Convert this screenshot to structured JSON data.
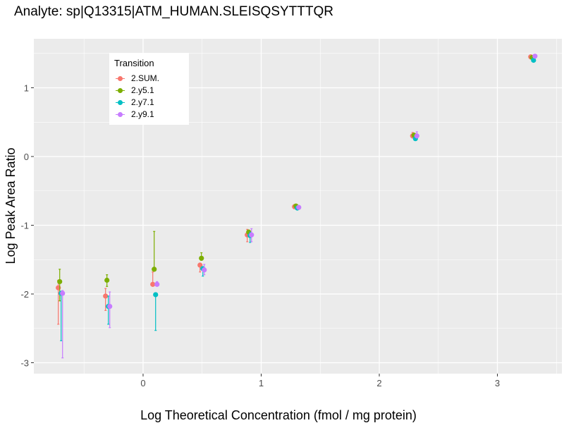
{
  "chart_data": {
    "type": "scatter",
    "title": "Analyte: sp|Q13315|ATM_HUMAN.SLEISQSYTTTQR",
    "xlabel": "Log Theoretical Concentration (fmol / mg protein)",
    "ylabel": "Log Peak Area Ratio",
    "xlim": [
      -0.925,
      3.546
    ],
    "ylim": [
      -3.159,
      1.713
    ],
    "x_ticks": [
      0,
      1,
      2,
      3
    ],
    "x_tick_labels": [
      "0",
      "1",
      "2",
      "3"
    ],
    "y_ticks": [
      -3,
      -2,
      -1,
      0,
      1
    ],
    "y_tick_labels": [
      "-3",
      "-2",
      "-1",
      "0",
      "1"
    ],
    "grid": true,
    "legend": {
      "title": "Transition",
      "placement": "top-left"
    },
    "x": [
      -0.7,
      -0.3,
      0.1,
      0.5,
      0.9,
      1.3,
      2.3,
      3.3
    ],
    "series": [
      {
        "name": "2.SUM.",
        "color": "#F8766D",
        "values": [
          -1.91,
          -2.03,
          -1.86,
          -1.58,
          -1.14,
          -0.73,
          0.3,
          1.45
        ],
        "err_low": [
          -2.44,
          -2.24,
          -1.86,
          -1.68,
          -1.24,
          -0.76,
          0.27,
          1.42
        ],
        "err_high": [
          -1.8,
          -1.92,
          -1.68,
          -1.55,
          -1.06,
          -0.7,
          0.35,
          1.47
        ]
      },
      {
        "name": "2.y5.1",
        "color": "#7CAE00",
        "values": [
          -1.82,
          -1.8,
          -1.64,
          -1.48,
          -1.1,
          -0.72,
          0.31,
          1.44
        ],
        "err_low": [
          -2.1,
          -1.89,
          -1.64,
          -1.51,
          -1.14,
          -0.74,
          0.29,
          1.42
        ],
        "err_high": [
          -1.64,
          -1.72,
          -1.09,
          -1.4,
          -1.07,
          -0.7,
          0.33,
          1.46
        ]
      },
      {
        "name": "2.y7.1",
        "color": "#00BFC4",
        "values": [
          -1.99,
          -2.18,
          -2.01,
          -1.63,
          -1.15,
          -0.75,
          0.26,
          1.4
        ],
        "err_low": [
          -2.68,
          -2.44,
          -2.53,
          -1.74,
          -1.25,
          -0.77,
          0.24,
          1.38
        ],
        "err_high": [
          -1.96,
          -2.03,
          -2.01,
          -1.63,
          -1.1,
          -0.73,
          0.29,
          1.42
        ]
      },
      {
        "name": "2.y9.1",
        "color": "#C77CFF",
        "values": [
          -1.99,
          -2.18,
          -1.86,
          -1.65,
          -1.14,
          -0.74,
          0.3,
          1.46
        ],
        "err_low": [
          -2.93,
          -2.49,
          -1.86,
          -1.72,
          -1.24,
          -0.76,
          0.27,
          1.44
        ],
        "err_high": [
          -1.95,
          -1.97,
          -1.82,
          -1.57,
          -1.05,
          -0.72,
          0.36,
          1.48
        ]
      }
    ]
  }
}
